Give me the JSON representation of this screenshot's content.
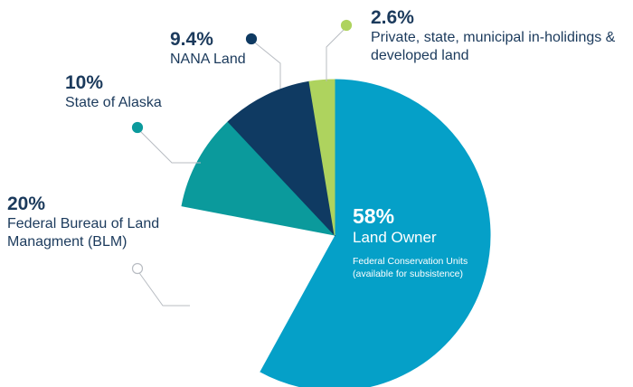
{
  "chart_data": {
    "type": "pie",
    "slices": [
      {
        "pct_label": "58%",
        "label": "Land Owner",
        "note": "Federal Conservation Units (available for subsistence)",
        "value": 58,
        "color": "#05a0c8"
      },
      {
        "pct_label": "20%",
        "label": "Federal Bureau of Land Managment (BLM)",
        "value": 20,
        "color": "#ffffff"
      },
      {
        "pct_label": "10%",
        "label": "State of Alaska",
        "value": 10,
        "color": "#0b9a9c"
      },
      {
        "pct_label": "9.4%",
        "label": "NANA Land",
        "value": 9.4,
        "color": "#0f3a62"
      },
      {
        "pct_label": "2.6%",
        "label": "Private, state, municipal in-holidings & developed land",
        "value": 2.6,
        "color": "#aed35e"
      }
    ]
  }
}
